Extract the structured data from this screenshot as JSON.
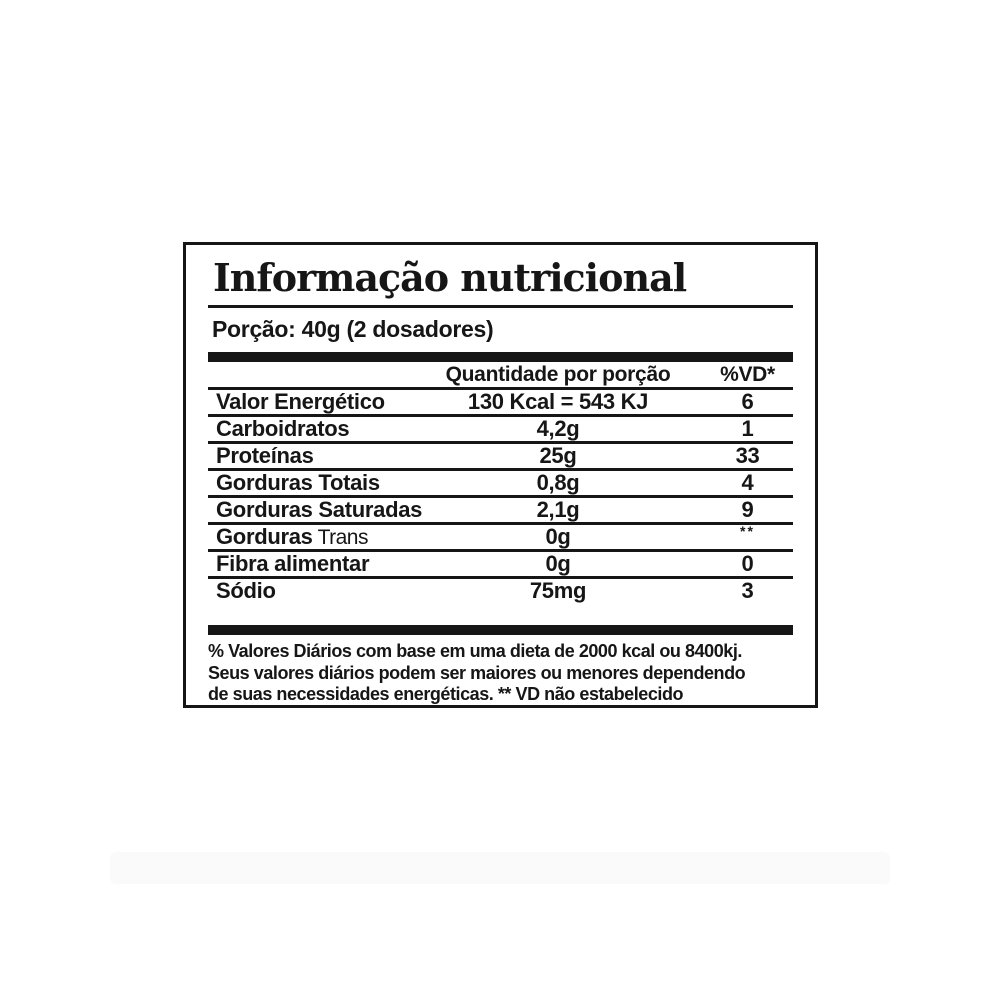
{
  "label": {
    "title": "Informação nutricional",
    "serving": "Porção: 40g (2 dosadores)",
    "table": {
      "col_quantity": "Quantidade por porção",
      "col_dv": "%VD*",
      "rows": [
        {
          "name": "Valor Energético",
          "name_suffix": "",
          "quantity": "130 Kcal = 543 KJ",
          "dv": "6"
        },
        {
          "name": "Carboidratos",
          "name_suffix": "",
          "quantity": "4,2g",
          "dv": "1"
        },
        {
          "name": "Proteínas",
          "name_suffix": "",
          "quantity": "25g",
          "dv": "33"
        },
        {
          "name": "Gorduras Totais",
          "name_suffix": "",
          "quantity": "0,8g",
          "dv": "4"
        },
        {
          "name": "Gorduras Saturadas",
          "name_suffix": "",
          "quantity": "2,1g",
          "dv": "9"
        },
        {
          "name": "Gorduras",
          "name_suffix": " Trans",
          "quantity": "0g",
          "dv": "**"
        },
        {
          "name": "Fibra alimentar",
          "name_suffix": "",
          "quantity": "0g",
          "dv": "0"
        },
        {
          "name": "Sódio",
          "name_suffix": "",
          "quantity": "75mg",
          "dv": "3"
        }
      ]
    },
    "footnote_lines": [
      "% Valores Diários com base em uma dieta de 2000 kcal ou 8400kj.",
      "Seus valores diários podem ser maiores ou menores dependendo",
      "de suas necessidades energéticas. ** VD não estabelecido"
    ],
    "colors": {
      "ink": "#161616",
      "background": "#ffffff"
    }
  }
}
